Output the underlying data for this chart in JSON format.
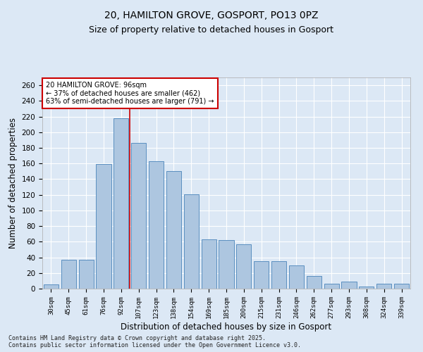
{
  "title1": "20, HAMILTON GROVE, GOSPORT, PO13 0PZ",
  "title2": "Size of property relative to detached houses in Gosport",
  "xlabel": "Distribution of detached houses by size in Gosport",
  "ylabel": "Number of detached properties",
  "categories": [
    "30sqm",
    "45sqm",
    "61sqm",
    "76sqm",
    "92sqm",
    "107sqm",
    "123sqm",
    "138sqm",
    "154sqm",
    "169sqm",
    "185sqm",
    "200sqm",
    "215sqm",
    "231sqm",
    "246sqm",
    "262sqm",
    "277sqm",
    "293sqm",
    "308sqm",
    "324sqm",
    "339sqm"
  ],
  "values": [
    5,
    37,
    37,
    159,
    218,
    186,
    163,
    150,
    121,
    63,
    62,
    57,
    35,
    35,
    30,
    16,
    6,
    9,
    3,
    6,
    6
  ],
  "bar_color": "#adc6e0",
  "bar_edge_color": "#5a8fc0",
  "vline_x": 4.5,
  "vline_color": "#cc0000",
  "annotation_text": "20 HAMILTON GROVE: 96sqm\n← 37% of detached houses are smaller (462)\n63% of semi-detached houses are larger (791) →",
  "annotation_box_color": "#ffffff",
  "annotation_box_edge": "#cc0000",
  "ylim": [
    0,
    270
  ],
  "yticks": [
    0,
    20,
    40,
    60,
    80,
    100,
    120,
    140,
    160,
    180,
    200,
    220,
    240,
    260
  ],
  "footer1": "Contains HM Land Registry data © Crown copyright and database right 2025.",
  "footer2": "Contains public sector information licensed under the Open Government Licence v3.0.",
  "bg_color": "#dce8f5",
  "grid_color": "#ffffff",
  "title_fontsize": 10,
  "subtitle_fontsize": 9,
  "tick_fontsize": 6.5,
  "label_fontsize": 8.5,
  "footer_fontsize": 6
}
